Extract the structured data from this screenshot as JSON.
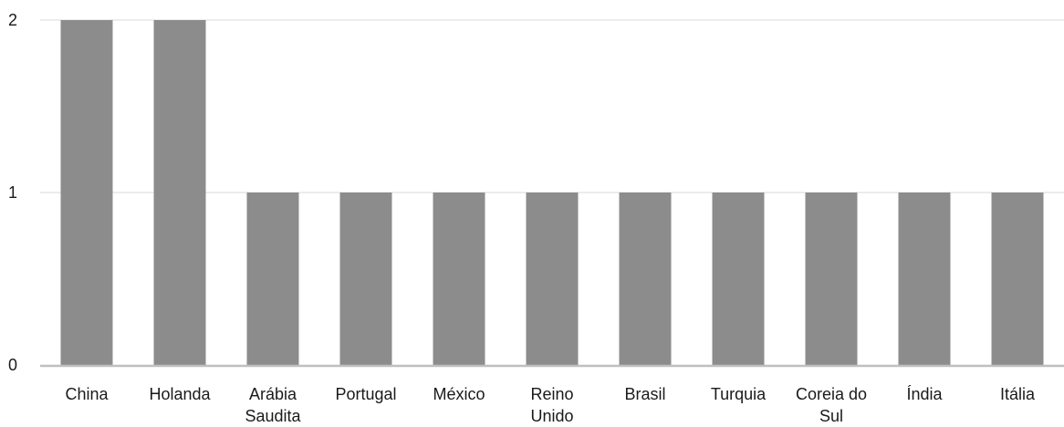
{
  "chart_data": {
    "type": "bar",
    "title": "",
    "xlabel": "",
    "ylabel": "",
    "categories": [
      [
        "China"
      ],
      [
        "Holanda"
      ],
      [
        "Arábia",
        "Saudita"
      ],
      [
        "Portugal"
      ],
      [
        "México"
      ],
      [
        "Reino",
        "Unido"
      ],
      [
        "Brasil"
      ],
      [
        "Turquia"
      ],
      [
        "Coreia do",
        "Sul"
      ],
      [
        "Índia"
      ],
      [
        "Itália"
      ]
    ],
    "values": [
      2,
      2,
      1,
      1,
      1,
      1,
      1,
      1,
      1,
      1,
      1
    ],
    "ylim": [
      0,
      2
    ],
    "yticks": [
      "0",
      "1",
      "2"
    ],
    "grid": true,
    "colors": {
      "bar": "#8c8c8c",
      "grid": "#e6e6e6",
      "axis": "#bfbfbf",
      "text": "#1a1a1a"
    }
  }
}
